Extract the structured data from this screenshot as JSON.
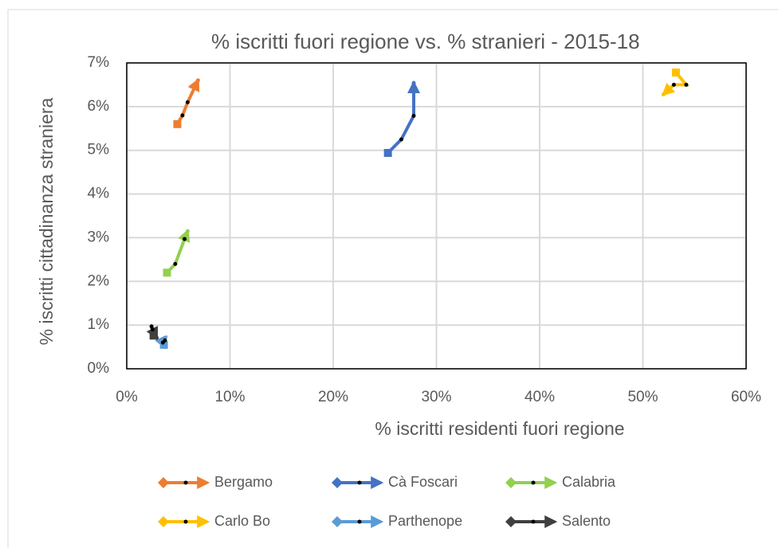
{
  "chart_data": {
    "type": "scatter",
    "title": "% iscritti fuori regione vs. % stranieri - 2015-18",
    "x_label": "% iscritti residenti fuori regione",
    "y_label": "% iscritti cittadinanza straniera",
    "xlim": [
      0,
      60
    ],
    "ylim": [
      0,
      7
    ],
    "xticks": [
      {
        "value": 0,
        "label": "0%"
      },
      {
        "value": 10,
        "label": "10%"
      },
      {
        "value": 20,
        "label": "20%"
      },
      {
        "value": 30,
        "label": "30%"
      },
      {
        "value": 40,
        "label": "40%"
      },
      {
        "value": 50,
        "label": "50%"
      },
      {
        "value": 60,
        "label": "60%"
      }
    ],
    "yticks": [
      {
        "value": 0,
        "label": "0%"
      },
      {
        "value": 1,
        "label": "1%"
      },
      {
        "value": 2,
        "label": "2%"
      },
      {
        "value": 3,
        "label": "3%"
      },
      {
        "value": 4,
        "label": "4%"
      },
      {
        "value": 5,
        "label": "5%"
      },
      {
        "value": 6,
        "label": "6%"
      },
      {
        "value": 7,
        "label": "7%"
      }
    ],
    "grid": true,
    "series": [
      {
        "name": "Bergamo",
        "color": "#ed7d31",
        "x": [
          4.9,
          5.4,
          5.9,
          6.9
        ],
        "values": [
          5.6,
          5.8,
          6.1,
          6.6
        ]
      },
      {
        "name": "Cà Foscari",
        "color": "#4472c4",
        "x": [
          25.3,
          26.6,
          27.8,
          27.8
        ],
        "values": [
          4.94,
          5.25,
          5.79,
          6.54
        ]
      },
      {
        "name": "Calabria",
        "color": "#92d050",
        "x": [
          3.9,
          4.7,
          5.6,
          5.9
        ],
        "values": [
          2.2,
          2.4,
          2.97,
          3.15
        ]
      },
      {
        "name": "Carlo Bo",
        "color": "#ffc000",
        "x": [
          53.2,
          54.2,
          53.0,
          52.0
        ],
        "values": [
          6.78,
          6.5,
          6.5,
          6.28
        ]
      },
      {
        "name": "Parthenope",
        "color": "#5b9bd5",
        "x": [
          3.6,
          3.7,
          3.5,
          3.7
        ],
        "values": [
          0.55,
          0.65,
          0.6,
          0.5
        ]
      },
      {
        "name": "Salento",
        "color": "#404040",
        "x": [
          2.6,
          2.4,
          2.5,
          2.9
        ],
        "values": [
          0.76,
          0.97,
          0.9,
          0.71
        ]
      }
    ]
  }
}
